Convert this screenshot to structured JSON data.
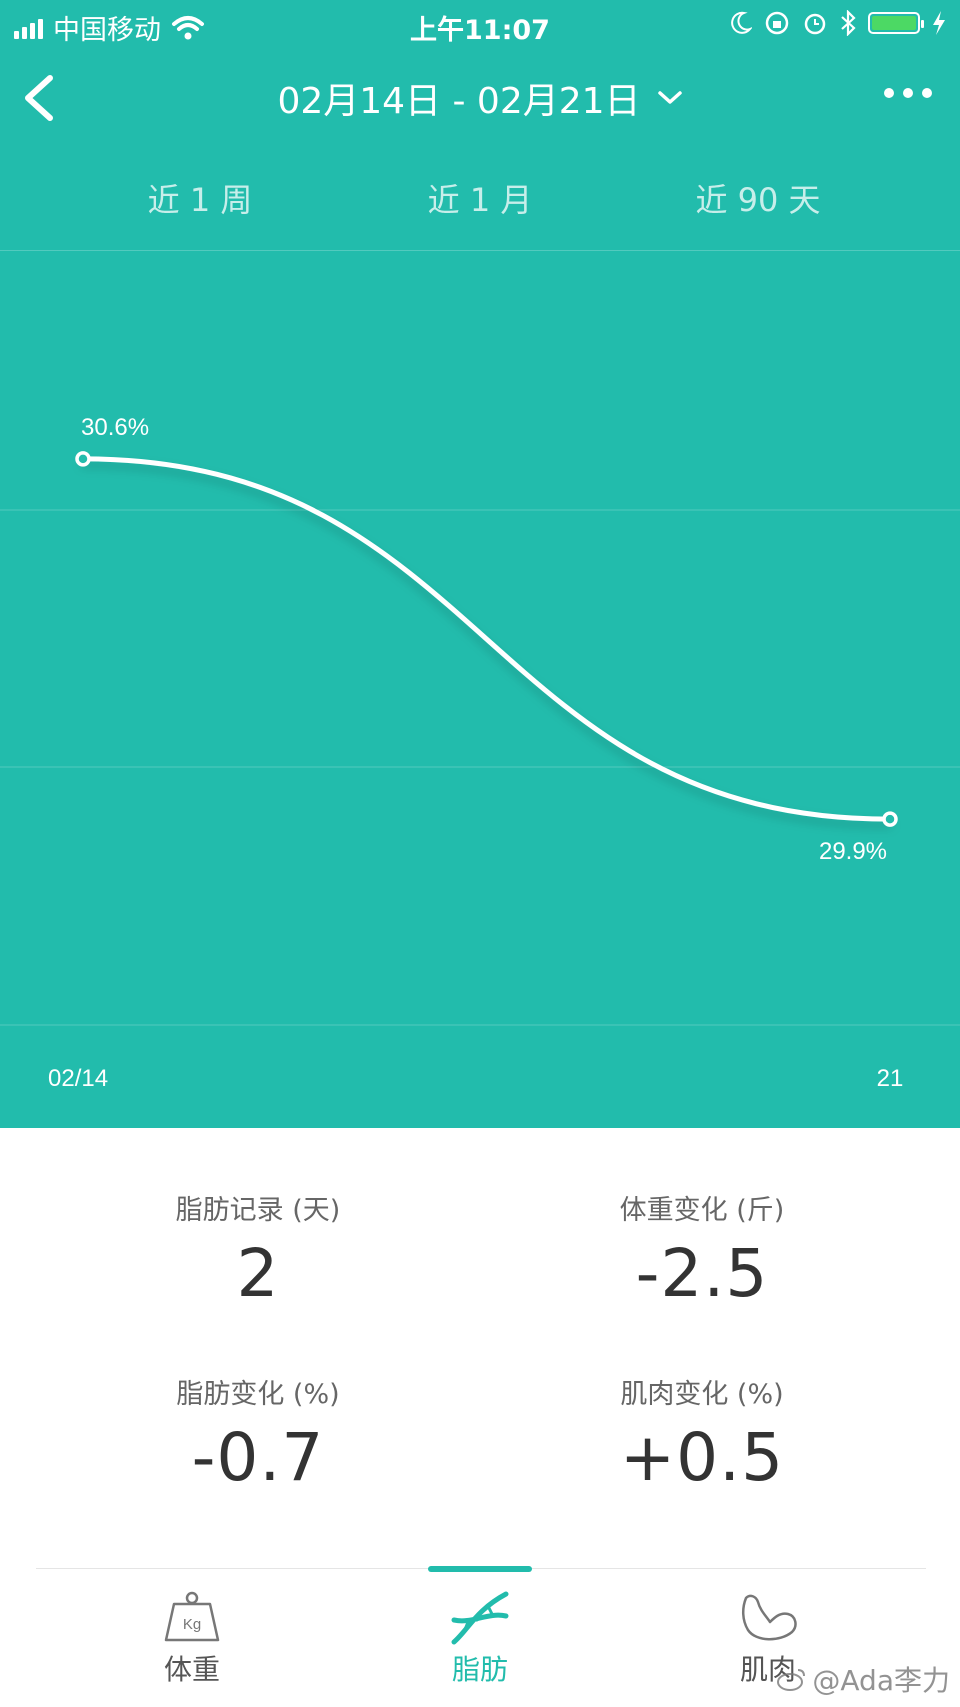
{
  "status_bar": {
    "carrier": "中国移动",
    "time": "上午11:07"
  },
  "header": {
    "date_range": "02月14日 - 02月21日"
  },
  "range_tabs": [
    "近 1 周",
    "近 1 月",
    "近 90 天"
  ],
  "chart_data": {
    "type": "line",
    "x": [
      "02/14",
      "21"
    ],
    "values": [
      30.6,
      29.9
    ],
    "data_labels": [
      "30.6%",
      "29.9%"
    ],
    "x_tick_labels": [
      "02/14",
      "21"
    ],
    "ylim": [
      29.5,
      31.0
    ],
    "colors": {
      "background": "#22bcac",
      "line": "#ffffff"
    }
  },
  "stats": [
    {
      "label": "脂肪记录 (天)",
      "value": "2"
    },
    {
      "label": "体重变化 (斤)",
      "value": "-2.5"
    },
    {
      "label": "脂肪变化 (%)",
      "value": "-0.7"
    },
    {
      "label": "肌肉变化 (%)",
      "value": "+0.5"
    }
  ],
  "bottom_nav": [
    {
      "label": "体重",
      "icon": "kg-weight-icon",
      "active": false
    },
    {
      "label": "脂肪",
      "icon": "dna-icon",
      "active": true
    },
    {
      "label": "肌肉",
      "icon": "muscle-arm-icon",
      "active": false
    }
  ],
  "watermark": "@Ada李力",
  "theme": {
    "accent": "#22bcac"
  }
}
